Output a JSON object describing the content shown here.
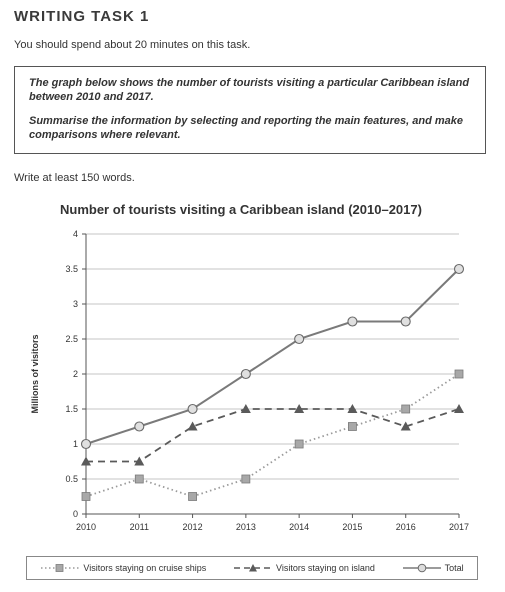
{
  "task": {
    "heading": "WRITING TASK 1",
    "instruction": "You should spend about 20 minutes on this task.",
    "prompt_line1": "The graph below shows the number of tourists visiting a particular Caribbean island between 2010 and 2017.",
    "prompt_line2": "Summarise the information by selecting and reporting the main features, and make comparisons where relevant.",
    "word_count": "Write at least 150 words."
  },
  "chart_data": {
    "type": "line",
    "title": "Number of tourists visiting a Caribbean island (2010–2017)",
    "ylabel": "Millions of visitors",
    "xlabel": "",
    "x": [
      "2010",
      "2011",
      "2012",
      "2013",
      "2014",
      "2015",
      "2016",
      "2017"
    ],
    "ylim": [
      0,
      4
    ],
    "yticks": [
      "0",
      "0.5",
      "1",
      "1.5",
      "2",
      "2.5",
      "3",
      "3.5",
      "4"
    ],
    "grid": true,
    "legend_position": "bottom",
    "series": [
      {
        "name": "Visitors staying on cruise ships",
        "marker": "square",
        "line": "dotted",
        "color": "#9a9a9a",
        "values": [
          0.25,
          0.5,
          0.25,
          0.5,
          1.0,
          1.25,
          1.5,
          2.0
        ]
      },
      {
        "name": "Visitors staying on island",
        "marker": "triangle",
        "line": "dashed",
        "color": "#5a5a5a",
        "values": [
          0.75,
          0.75,
          1.25,
          1.5,
          1.5,
          1.5,
          1.25,
          1.5
        ]
      },
      {
        "name": "Total",
        "marker": "circle",
        "line": "solid",
        "color": "#7a7a7a",
        "values": [
          1.0,
          1.25,
          1.5,
          2.0,
          2.5,
          2.75,
          2.75,
          3.5
        ]
      }
    ]
  }
}
